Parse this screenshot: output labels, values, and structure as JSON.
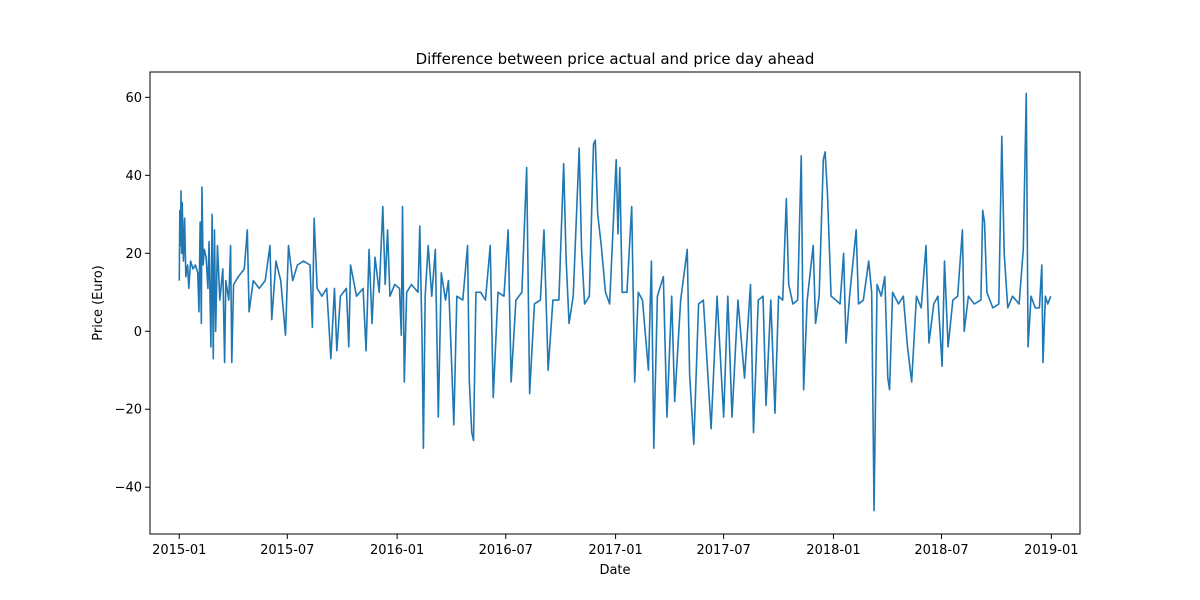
{
  "chart_data": {
    "type": "line",
    "title": "Difference between price actual and price day ahead",
    "xlabel": "Date",
    "ylabel": "Price (Euro)",
    "x_ticks": [
      "2015-01",
      "2015-07",
      "2016-01",
      "2016-07",
      "2017-01",
      "2017-07",
      "2018-01",
      "2018-07",
      "2019-01"
    ],
    "y_ticks": [
      -40,
      -20,
      0,
      20,
      40,
      60
    ],
    "xlim": [
      "2014-11-13",
      "2019-02-18"
    ],
    "ylim": [
      -52,
      66.5
    ],
    "grid": false,
    "series": [
      {
        "color": "#1f77b4",
        "points": [
          [
            "2015-01-01",
            13
          ],
          [
            "2015-01-02",
            31
          ],
          [
            "2015-01-03",
            22
          ],
          [
            "2015-01-04",
            36
          ],
          [
            "2015-01-05",
            20
          ],
          [
            "2015-01-06",
            33
          ],
          [
            "2015-01-08",
            18
          ],
          [
            "2015-01-10",
            29
          ],
          [
            "2015-01-12",
            14
          ],
          [
            "2015-01-15",
            17
          ],
          [
            "2015-01-17",
            11
          ],
          [
            "2015-01-20",
            18
          ],
          [
            "2015-01-24",
            16
          ],
          [
            "2015-01-28",
            17
          ],
          [
            "2015-02-01",
            15
          ],
          [
            "2015-02-03",
            5
          ],
          [
            "2015-02-05",
            28
          ],
          [
            "2015-02-07",
            2
          ],
          [
            "2015-02-08",
            37
          ],
          [
            "2015-02-10",
            17
          ],
          [
            "2015-02-12",
            21
          ],
          [
            "2015-02-15",
            19
          ],
          [
            "2015-02-18",
            11
          ],
          [
            "2015-02-20",
            23
          ],
          [
            "2015-02-23",
            -4
          ],
          [
            "2015-02-25",
            30
          ],
          [
            "2015-02-27",
            -7
          ],
          [
            "2015-03-01",
            26
          ],
          [
            "2015-03-03",
            0
          ],
          [
            "2015-03-06",
            22
          ],
          [
            "2015-03-10",
            8
          ],
          [
            "2015-03-15",
            16
          ],
          [
            "2015-03-18",
            -8
          ],
          [
            "2015-03-20",
            13
          ],
          [
            "2015-03-25",
            8
          ],
          [
            "2015-03-28",
            22
          ],
          [
            "2015-03-30",
            -8
          ],
          [
            "2015-04-02",
            12
          ],
          [
            "2015-04-10",
            14
          ],
          [
            "2015-04-20",
            16
          ],
          [
            "2015-04-25",
            26
          ],
          [
            "2015-04-28",
            5
          ],
          [
            "2015-05-05",
            13
          ],
          [
            "2015-05-15",
            11
          ],
          [
            "2015-05-25",
            13
          ],
          [
            "2015-06-02",
            22
          ],
          [
            "2015-06-05",
            3
          ],
          [
            "2015-06-12",
            18
          ],
          [
            "2015-06-20",
            13
          ],
          [
            "2015-06-28",
            -1
          ],
          [
            "2015-07-03",
            22
          ],
          [
            "2015-07-10",
            13
          ],
          [
            "2015-07-18",
            17
          ],
          [
            "2015-07-28",
            18
          ],
          [
            "2015-08-08",
            17
          ],
          [
            "2015-08-12",
            1
          ],
          [
            "2015-08-15",
            29
          ],
          [
            "2015-08-20",
            11
          ],
          [
            "2015-08-28",
            9
          ],
          [
            "2015-09-05",
            11
          ],
          [
            "2015-09-12",
            -7
          ],
          [
            "2015-09-18",
            11
          ],
          [
            "2015-09-22",
            -5
          ],
          [
            "2015-09-28",
            9
          ],
          [
            "2015-10-08",
            11
          ],
          [
            "2015-10-12",
            -4
          ],
          [
            "2015-10-15",
            17
          ],
          [
            "2015-10-25",
            9
          ],
          [
            "2015-11-05",
            11
          ],
          [
            "2015-11-10",
            -5
          ],
          [
            "2015-11-15",
            21
          ],
          [
            "2015-11-20",
            2
          ],
          [
            "2015-11-25",
            19
          ],
          [
            "2015-12-02",
            10
          ],
          [
            "2015-12-08",
            32
          ],
          [
            "2015-12-12",
            12
          ],
          [
            "2015-12-16",
            26
          ],
          [
            "2015-12-20",
            9
          ],
          [
            "2015-12-28",
            12
          ],
          [
            "2016-01-05",
            11
          ],
          [
            "2016-01-08",
            -1
          ],
          [
            "2016-01-10",
            32
          ],
          [
            "2016-01-13",
            -13
          ],
          [
            "2016-01-17",
            10
          ],
          [
            "2016-01-25",
            12
          ],
          [
            "2016-02-05",
            10
          ],
          [
            "2016-02-08",
            27
          ],
          [
            "2016-02-12",
            -4
          ],
          [
            "2016-02-14",
            -30
          ],
          [
            "2016-02-17",
            9
          ],
          [
            "2016-02-22",
            22
          ],
          [
            "2016-02-28",
            9
          ],
          [
            "2016-03-05",
            21
          ],
          [
            "2016-03-10",
            -22
          ],
          [
            "2016-03-15",
            15
          ],
          [
            "2016-03-22",
            8
          ],
          [
            "2016-03-27",
            13
          ],
          [
            "2016-04-01",
            -7
          ],
          [
            "2016-04-05",
            -24
          ],
          [
            "2016-04-10",
            9
          ],
          [
            "2016-04-20",
            8
          ],
          [
            "2016-04-28",
            22
          ],
          [
            "2016-05-01",
            -13
          ],
          [
            "2016-05-05",
            -26
          ],
          [
            "2016-05-08",
            -28
          ],
          [
            "2016-05-12",
            10
          ],
          [
            "2016-05-20",
            10
          ],
          [
            "2016-05-28",
            8
          ],
          [
            "2016-06-05",
            22
          ],
          [
            "2016-06-10",
            -17
          ],
          [
            "2016-06-18",
            10
          ],
          [
            "2016-06-28",
            9
          ],
          [
            "2016-07-05",
            26
          ],
          [
            "2016-07-10",
            -13
          ],
          [
            "2016-07-18",
            8
          ],
          [
            "2016-07-28",
            10
          ],
          [
            "2016-08-05",
            42
          ],
          [
            "2016-08-10",
            -16
          ],
          [
            "2016-08-18",
            7
          ],
          [
            "2016-08-28",
            8
          ],
          [
            "2016-09-03",
            26
          ],
          [
            "2016-09-10",
            -10
          ],
          [
            "2016-09-18",
            8
          ],
          [
            "2016-09-28",
            8
          ],
          [
            "2016-10-06",
            43
          ],
          [
            "2016-10-10",
            19
          ],
          [
            "2016-10-15",
            2
          ],
          [
            "2016-10-22",
            9
          ],
          [
            "2016-11-01",
            47
          ],
          [
            "2016-11-05",
            21
          ],
          [
            "2016-11-10",
            7
          ],
          [
            "2016-11-18",
            9
          ],
          [
            "2016-11-25",
            48
          ],
          [
            "2016-11-28",
            49
          ],
          [
            "2016-12-02",
            30
          ],
          [
            "2016-12-08",
            22
          ],
          [
            "2016-12-15",
            10
          ],
          [
            "2016-12-22",
            7
          ],
          [
            "2017-01-02",
            44
          ],
          [
            "2017-01-05",
            25
          ],
          [
            "2017-01-08",
            42
          ],
          [
            "2017-01-12",
            10
          ],
          [
            "2017-01-20",
            10
          ],
          [
            "2017-01-28",
            32
          ],
          [
            "2017-02-02",
            -13
          ],
          [
            "2017-02-08",
            10
          ],
          [
            "2017-02-15",
            8
          ],
          [
            "2017-02-25",
            -10
          ],
          [
            "2017-03-02",
            18
          ],
          [
            "2017-03-06",
            -30
          ],
          [
            "2017-03-12",
            9
          ],
          [
            "2017-03-22",
            14
          ],
          [
            "2017-03-28",
            -22
          ],
          [
            "2017-04-05",
            9
          ],
          [
            "2017-04-10",
            -18
          ],
          [
            "2017-04-20",
            8
          ],
          [
            "2017-05-01",
            21
          ],
          [
            "2017-05-05",
            -11
          ],
          [
            "2017-05-12",
            -29
          ],
          [
            "2017-05-20",
            7
          ],
          [
            "2017-05-28",
            8
          ],
          [
            "2017-06-10",
            -25
          ],
          [
            "2017-06-20",
            9
          ],
          [
            "2017-07-01",
            -22
          ],
          [
            "2017-07-08",
            9
          ],
          [
            "2017-07-15",
            -22
          ],
          [
            "2017-07-25",
            8
          ],
          [
            "2017-08-05",
            -12
          ],
          [
            "2017-08-15",
            12
          ],
          [
            "2017-08-20",
            -26
          ],
          [
            "2017-08-28",
            8
          ],
          [
            "2017-09-05",
            9
          ],
          [
            "2017-09-10",
            -19
          ],
          [
            "2017-09-18",
            8
          ],
          [
            "2017-09-25",
            -21
          ],
          [
            "2017-10-01",
            9
          ],
          [
            "2017-10-08",
            8
          ],
          [
            "2017-10-14",
            34
          ],
          [
            "2017-10-18",
            12
          ],
          [
            "2017-10-25",
            7
          ],
          [
            "2017-11-02",
            8
          ],
          [
            "2017-11-08",
            45
          ],
          [
            "2017-11-12",
            -15
          ],
          [
            "2017-11-18",
            8
          ],
          [
            "2017-11-28",
            22
          ],
          [
            "2017-12-02",
            2
          ],
          [
            "2017-12-08",
            9
          ],
          [
            "2017-12-15",
            44
          ],
          [
            "2017-12-18",
            46
          ],
          [
            "2017-12-22",
            35
          ],
          [
            "2017-12-28",
            9
          ],
          [
            "2018-01-05",
            8
          ],
          [
            "2018-01-12",
            7
          ],
          [
            "2018-01-18",
            20
          ],
          [
            "2018-01-22",
            -3
          ],
          [
            "2018-01-28",
            9
          ],
          [
            "2018-02-08",
            26
          ],
          [
            "2018-02-12",
            7
          ],
          [
            "2018-02-20",
            8
          ],
          [
            "2018-03-01",
            18
          ],
          [
            "2018-03-06",
            10
          ],
          [
            "2018-03-10",
            -46
          ],
          [
            "2018-03-15",
            12
          ],
          [
            "2018-03-22",
            9
          ],
          [
            "2018-03-28",
            14
          ],
          [
            "2018-04-02",
            -12
          ],
          [
            "2018-04-05",
            -15
          ],
          [
            "2018-04-10",
            10
          ],
          [
            "2018-04-20",
            7
          ],
          [
            "2018-04-28",
            9
          ],
          [
            "2018-05-05",
            -4
          ],
          [
            "2018-05-12",
            -13
          ],
          [
            "2018-05-20",
            9
          ],
          [
            "2018-05-28",
            6
          ],
          [
            "2018-06-05",
            22
          ],
          [
            "2018-06-10",
            -3
          ],
          [
            "2018-06-18",
            7
          ],
          [
            "2018-06-25",
            9
          ],
          [
            "2018-07-02",
            -9
          ],
          [
            "2018-07-06",
            18
          ],
          [
            "2018-07-12",
            -4
          ],
          [
            "2018-07-20",
            8
          ],
          [
            "2018-07-28",
            9
          ],
          [
            "2018-08-05",
            26
          ],
          [
            "2018-08-08",
            0
          ],
          [
            "2018-08-15",
            9
          ],
          [
            "2018-08-25",
            7
          ],
          [
            "2018-09-05",
            8
          ],
          [
            "2018-09-08",
            31
          ],
          [
            "2018-09-11",
            28
          ],
          [
            "2018-09-15",
            10
          ],
          [
            "2018-09-25",
            6
          ],
          [
            "2018-10-05",
            7
          ],
          [
            "2018-10-10",
            50
          ],
          [
            "2018-10-14",
            20
          ],
          [
            "2018-10-20",
            6
          ],
          [
            "2018-10-28",
            9
          ],
          [
            "2018-11-08",
            7
          ],
          [
            "2018-11-15",
            21
          ],
          [
            "2018-11-20",
            61
          ],
          [
            "2018-11-23",
            -4
          ],
          [
            "2018-11-28",
            9
          ],
          [
            "2018-12-05",
            6
          ],
          [
            "2018-12-12",
            6
          ],
          [
            "2018-12-16",
            17
          ],
          [
            "2018-12-18",
            -8
          ],
          [
            "2018-12-22",
            9
          ],
          [
            "2018-12-26",
            7
          ],
          [
            "2018-12-31",
            9
          ]
        ]
      }
    ]
  }
}
